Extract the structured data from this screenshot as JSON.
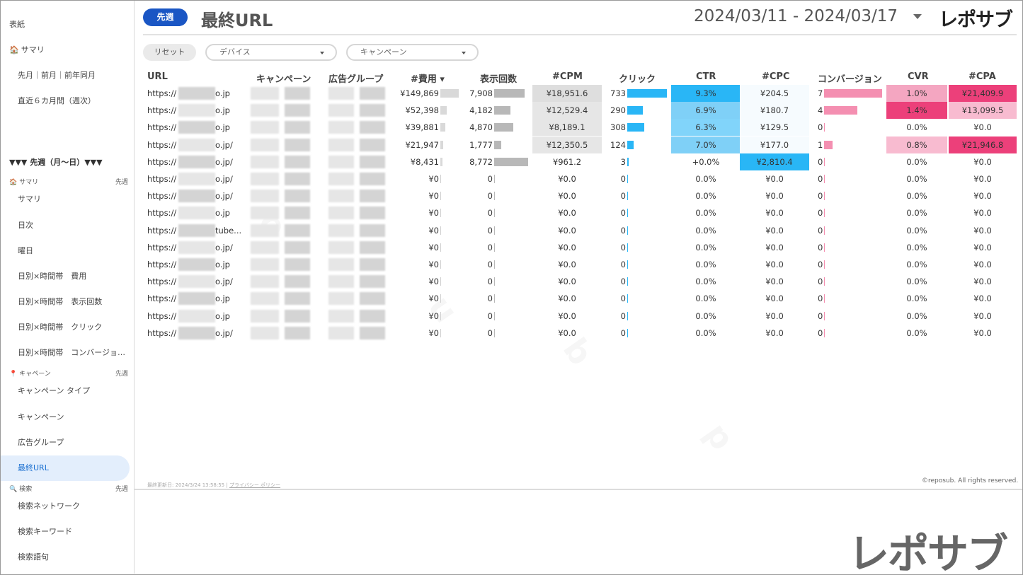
{
  "sidebar": {
    "top_items": [
      "表紙",
      "サマリ",
      "先月｜前月｜前年同月",
      "直近６カ月間（週次）"
    ],
    "week_header": "▼▼▼ 先週（月〜日）▼▼▼",
    "summary_section": {
      "label": "サマリ",
      "tag": "先週",
      "icon": "house-icon"
    },
    "summary_items": [
      "サマリ",
      "日次",
      "曜日",
      "日別×時間帯　費用",
      "日別×時間帯　表示回数",
      "日別×時間帯　クリック",
      "日別×時間帯　コンバージョ…"
    ],
    "campaign_section": {
      "label": "キャペーン",
      "tag": "先週",
      "icon": "pin-icon"
    },
    "campaign_items": [
      "キャンペーン タイプ",
      "キャンペーン",
      "広告グループ",
      "最終URL"
    ],
    "search_section": {
      "label": "検索",
      "tag": "先週",
      "icon": "magnifier-icon"
    },
    "search_items": [
      "検索ネットワーク",
      "検索キーワード",
      "検索語句"
    ],
    "active_item": "最終URL"
  },
  "header": {
    "period_label": "先週",
    "title": "最終URL",
    "date_range": "2024/03/11 - 2024/03/17",
    "brand": "レポサブ"
  },
  "filters": {
    "reset_label": "リセット",
    "device_label": "デバイス",
    "campaign_label": "キャンペーン"
  },
  "table": {
    "headers": [
      "URL",
      "キャンペーン",
      "広告グループ",
      "#費用 ▾",
      "表示回数",
      "#CPM",
      "クリック",
      "CTR",
      "#CPC",
      "コンバージョン",
      "CVR",
      "#CPA"
    ],
    "rows": [
      {
        "url": "https://",
        "url_tail": "o.jp",
        "cost": "¥149,869",
        "imp": "7,908",
        "cpm": "¥18,951.6",
        "clicks": "733",
        "ctr": "9.3%",
        "cpc": "¥204.5",
        "conv": "7",
        "cvr": "1.0%",
        "cpa": "¥21,409.9"
      },
      {
        "url": "https://",
        "url_tail": "o.jp",
        "cost": "¥52,398",
        "imp": "4,182",
        "cpm": "¥12,529.4",
        "clicks": "290",
        "ctr": "6.9%",
        "cpc": "¥180.7",
        "conv": "4",
        "cvr": "1.4%",
        "cpa": "¥13,099.5"
      },
      {
        "url": "https://",
        "url_tail": "o.jp",
        "cost": "¥39,881",
        "imp": "4,870",
        "cpm": "¥8,189.1",
        "clicks": "308",
        "ctr": "6.3%",
        "cpc": "¥129.5",
        "conv": "0",
        "cvr": "0.0%",
        "cpa": "¥0.0"
      },
      {
        "url": "https://",
        "url_tail": "o.jp/",
        "cost": "¥21,947",
        "imp": "1,777",
        "cpm": "¥12,350.5",
        "clicks": "124",
        "ctr": "7.0%",
        "cpc": "¥177.0",
        "conv": "1",
        "cvr": "0.8%",
        "cpa": "¥21,946.8"
      },
      {
        "url": "https://",
        "url_tail": "o.jp/",
        "cost": "¥8,431",
        "imp": "8,772",
        "cpm": "¥961.2",
        "clicks": "3",
        "ctr": "+0.0%",
        "cpc": "¥2,810.4",
        "conv": "0",
        "cvr": "0.0%",
        "cpa": "¥0.0"
      },
      {
        "url": "https://",
        "url_tail": "o.jp/",
        "cost": "¥0",
        "imp": "0",
        "cpm": "¥0.0",
        "clicks": "0",
        "ctr": "0.0%",
        "cpc": "¥0.0",
        "conv": "0",
        "cvr": "0.0%",
        "cpa": "¥0.0"
      },
      {
        "url": "https://",
        "url_tail": "o.jp/",
        "cost": "¥0",
        "imp": "0",
        "cpm": "¥0.0",
        "clicks": "0",
        "ctr": "0.0%",
        "cpc": "¥0.0",
        "conv": "0",
        "cvr": "0.0%",
        "cpa": "¥0.0"
      },
      {
        "url": "https://",
        "url_tail": "o.jp",
        "cost": "¥0",
        "imp": "0",
        "cpm": "¥0.0",
        "clicks": "0",
        "ctr": "0.0%",
        "cpc": "¥0.0",
        "conv": "0",
        "cvr": "0.0%",
        "cpa": "¥0.0"
      },
      {
        "url": "https://",
        "url_tail": "tube...",
        "cost": "¥0",
        "imp": "0",
        "cpm": "¥0.0",
        "clicks": "0",
        "ctr": "0.0%",
        "cpc": "¥0.0",
        "conv": "0",
        "cvr": "0.0%",
        "cpa": "¥0.0"
      },
      {
        "url": "https://",
        "url_tail": "o.jp/",
        "cost": "¥0",
        "imp": "0",
        "cpm": "¥0.0",
        "clicks": "0",
        "ctr": "0.0%",
        "cpc": "¥0.0",
        "conv": "0",
        "cvr": "0.0%",
        "cpa": "¥0.0"
      },
      {
        "url": "https://",
        "url_tail": "o.jp",
        "cost": "¥0",
        "imp": "0",
        "cpm": "¥0.0",
        "clicks": "0",
        "ctr": "0.0%",
        "cpc": "¥0.0",
        "conv": "0",
        "cvr": "0.0%",
        "cpa": "¥0.0"
      },
      {
        "url": "https://",
        "url_tail": "o.jp/",
        "cost": "¥0",
        "imp": "0",
        "cpm": "¥0.0",
        "clicks": "0",
        "ctr": "0.0%",
        "cpc": "¥0.0",
        "conv": "0",
        "cvr": "0.0%",
        "cpa": "¥0.0"
      },
      {
        "url": "https://",
        "url_tail": "o.jp",
        "cost": "¥0",
        "imp": "0",
        "cpm": "¥0.0",
        "clicks": "0",
        "ctr": "0.0%",
        "cpc": "¥0.0",
        "conv": "0",
        "cvr": "0.0%",
        "cpa": "¥0.0"
      },
      {
        "url": "https://",
        "url_tail": "o.jp",
        "cost": "¥0",
        "imp": "0",
        "cpm": "¥0.0",
        "clicks": "0",
        "ctr": "0.0%",
        "cpc": "¥0.0",
        "conv": "0",
        "cvr": "0.0%",
        "cpa": "¥0.0"
      },
      {
        "url": "https://",
        "url_tail": "o.jp/",
        "cost": "¥0",
        "imp": "0",
        "cpm": "¥0.0",
        "clicks": "0",
        "ctr": "0.0%",
        "cpc": "¥0.0",
        "conv": "0",
        "cvr": "0.0%",
        "cpa": "¥0.0"
      }
    ]
  },
  "footer": {
    "updated": "最終更新日: 2024/3/24 13:58:55",
    "privacy": "プライバシー ポリシー",
    "copyright": "©reposub. All rights reserved."
  },
  "brand_watermark": "レポサブ",
  "colors": {
    "accent": "#1a56c4",
    "ctr_high": "#29b6f6",
    "ctr_mid": "#81d4fa",
    "cvr_high": "#ec407a",
    "cvr_mid": "#f8bbd0"
  }
}
